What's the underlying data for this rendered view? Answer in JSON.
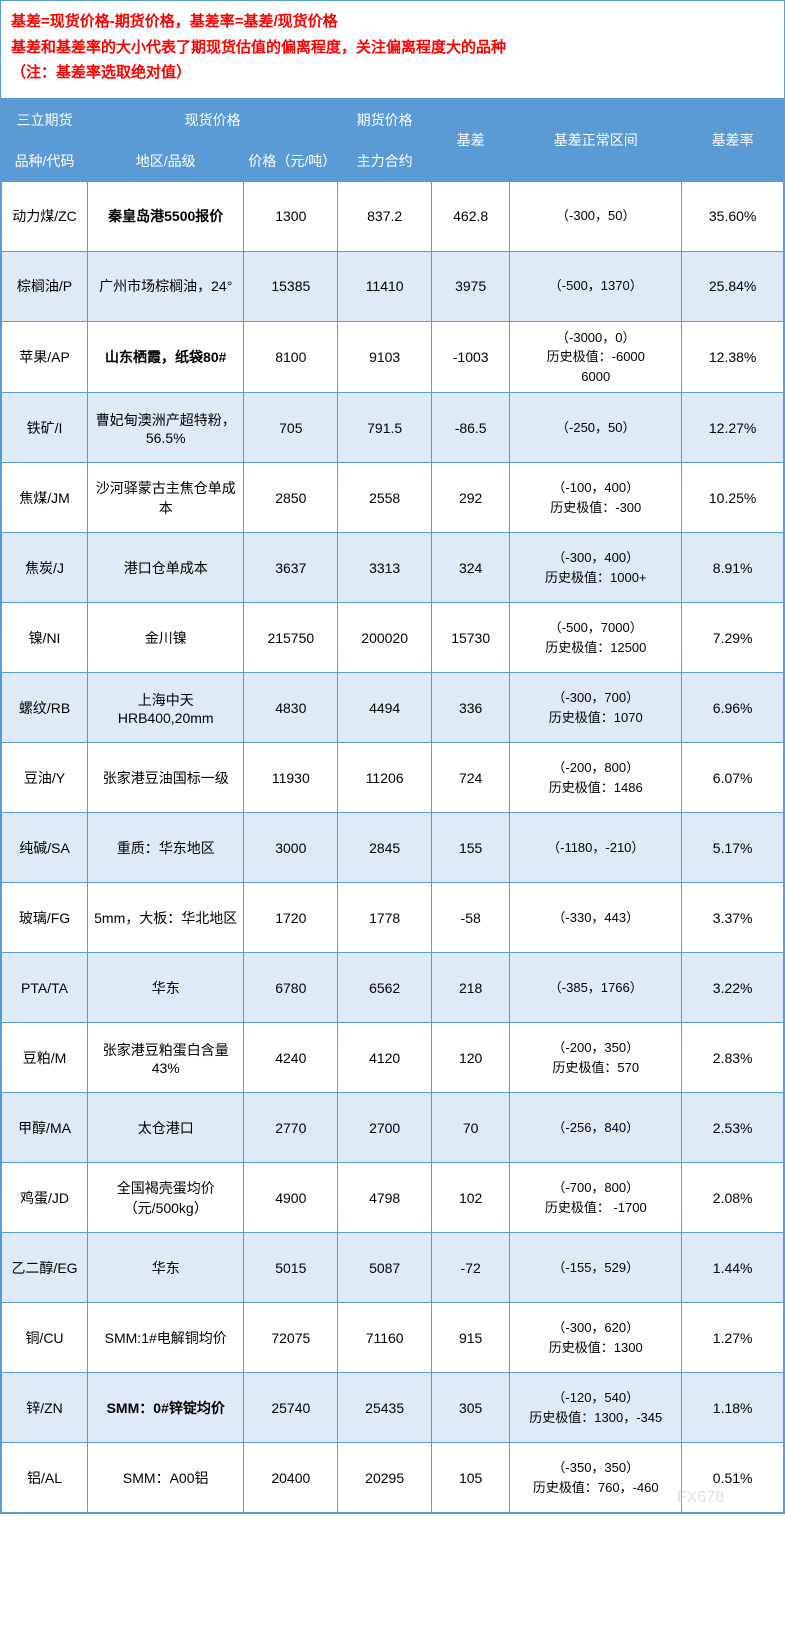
{
  "note": {
    "line1": "基差=现货价格-期货价格，基差率=基差/现货价格",
    "line2": "基差和基差率的大小代表了期现货估值的偏离程度，关注偏离程度大的品种",
    "line3": "（注：基差率选取绝对值）"
  },
  "header": {
    "group_company": "三立期货",
    "group_spot": "现货价格",
    "group_futures": "期货价格",
    "col_variety": "品种/代码",
    "col_region": "地区/品级",
    "col_price": "价格（元/吨）",
    "col_contract": "主力合约",
    "col_basis": "基差",
    "col_range": "基差正常区间",
    "col_rate": "基差率"
  },
  "colors": {
    "header_bg": "#5b9bd5",
    "header_text": "#ffffff",
    "border": "#5b9bd5",
    "row_alt_bg": "#deeaf6",
    "note_text": "#ff0000"
  },
  "rows": [
    {
      "variety": "动力煤/ZC",
      "region": "秦皇岛港5500报价",
      "region_bold": true,
      "price": "1300",
      "contract": "837.2",
      "basis": "462.8",
      "range": "（-300，50）",
      "rate": "35.60%"
    },
    {
      "variety": "棕榈油/P",
      "region": "广州市场棕榈油，24°",
      "price": "15385",
      "contract": "11410",
      "basis": "3975",
      "range": "（-500，1370）",
      "rate": "25.84%"
    },
    {
      "variety": "苹果/AP",
      "region": "山东栖霞，纸袋80#",
      "region_bold": true,
      "price": "8100",
      "contract": "9103",
      "basis": "-1003",
      "range": "（-3000，0）\n历史极值：-6000\n6000",
      "rate": "12.38%"
    },
    {
      "variety": "铁矿/I",
      "region": "曹妃甸澳洲产超特粉，56.5%",
      "price": "705",
      "contract": "791.5",
      "basis": "-86.5",
      "range": "（-250，50）",
      "rate": "12.27%"
    },
    {
      "variety": "焦煤/JM",
      "region": "沙河驿蒙古主焦仓单成本",
      "price": "2850",
      "contract": "2558",
      "basis": "292",
      "range": "（-100，400）\n历史极值：-300",
      "rate": "10.25%"
    },
    {
      "variety": "焦炭/J",
      "region": "港口仓单成本",
      "price": "3637",
      "contract": "3313",
      "basis": "324",
      "range": "（-300，400）\n历史极值：1000+",
      "rate": "8.91%"
    },
    {
      "variety": "镍/NI",
      "region": "金川镍",
      "price": "215750",
      "contract": "200020",
      "basis": "15730",
      "range": "（-500，7000）\n历史极值：12500",
      "rate": "7.29%"
    },
    {
      "variety": "螺纹/RB",
      "region": "上海中天HRB400,20mm",
      "price": "4830",
      "contract": "4494",
      "basis": "336",
      "range": "（-300，700）\n历史极值：1070",
      "rate": "6.96%"
    },
    {
      "variety": "豆油/Y",
      "region": "张家港豆油国标一级",
      "price": "11930",
      "contract": "11206",
      "basis": "724",
      "range": "（-200，800）\n历史极值：1486",
      "rate": "6.07%"
    },
    {
      "variety": "纯碱/SA",
      "region": "重质：华东地区",
      "price": "3000",
      "contract": "2845",
      "basis": "155",
      "range": "（-1180，-210）",
      "rate": "5.17%"
    },
    {
      "variety": "玻璃/FG",
      "region": "5mm，大板：华北地区",
      "price": "1720",
      "contract": "1778",
      "basis": "-58",
      "range": "（-330，443）",
      "rate": "3.37%"
    },
    {
      "variety": "PTA/TA",
      "region": "华东",
      "price": "6780",
      "contract": "6562",
      "basis": "218",
      "range": "（-385，1766）",
      "rate": "3.22%"
    },
    {
      "variety": "豆粕/M",
      "region": "张家港豆粕蛋白含量43%",
      "price": "4240",
      "contract": "4120",
      "basis": "120",
      "range": "（-200，350）\n历史极值：570",
      "rate": "2.83%"
    },
    {
      "variety": "甲醇/MA",
      "region": "太仓港口",
      "price": "2770",
      "contract": "2700",
      "basis": "70",
      "range": "（-256，840）",
      "rate": "2.53%"
    },
    {
      "variety": "鸡蛋/JD",
      "region": "全国褐壳蛋均价（元/500kg）",
      "price": "4900",
      "contract": "4798",
      "basis": "102",
      "range": "（-700，800）\n历史极值： -1700",
      "rate": "2.08%"
    },
    {
      "variety": "乙二醇/EG",
      "region": "华东",
      "price": "5015",
      "contract": "5087",
      "basis": "-72",
      "range": "（-155，529）",
      "rate": "1.44%"
    },
    {
      "variety": "铜/CU",
      "region": "SMM:1#电解铜均价",
      "price": "72075",
      "contract": "71160",
      "basis": "915",
      "range": "（-300，620）\n历史极值：1300",
      "rate": "1.27%"
    },
    {
      "variety": "锌/ZN",
      "region": "SMM：0#锌锭均价",
      "region_bold": true,
      "price": "25740",
      "contract": "25435",
      "basis": "305",
      "range": "（-120，540）\n历史极值：1300，-345",
      "rate": "1.18%"
    },
    {
      "variety": "铝/AL",
      "region": "SMM：A00铝",
      "price": "20400",
      "contract": "20295",
      "basis": "105",
      "range": "（-350，350）\n历史极值：760，-460",
      "rate": "0.51%"
    }
  ],
  "watermark": "FX678"
}
